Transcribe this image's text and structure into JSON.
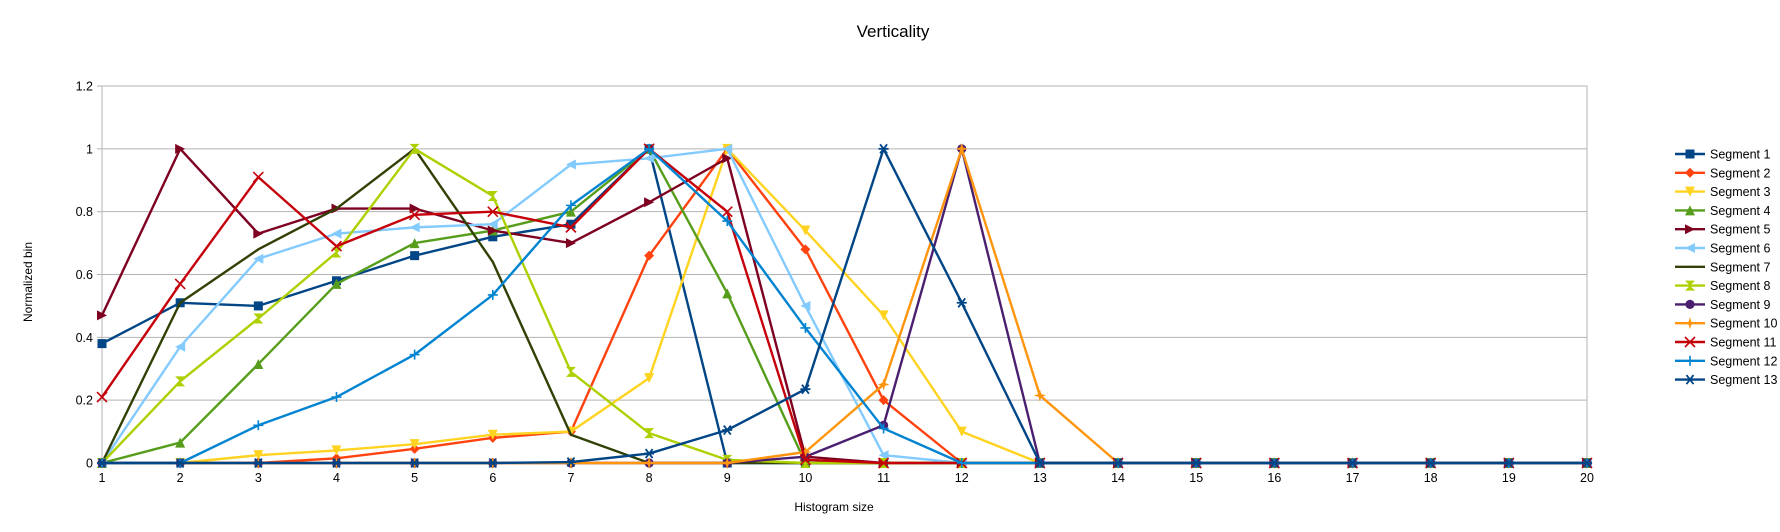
{
  "chart_data": {
    "type": "line",
    "title": "Verticality",
    "xlabel": "Histogram size",
    "ylabel": "Normalized bin",
    "x": [
      1,
      2,
      3,
      4,
      5,
      6,
      7,
      8,
      9,
      10,
      11,
      12,
      13,
      14,
      15,
      16,
      17,
      18,
      19,
      20
    ],
    "xlim": [
      1,
      20
    ],
    "ylim": [
      0,
      1.2
    ],
    "y_ticks": [
      "0",
      "0.2",
      "0.4",
      "0.6",
      "0.8",
      "1",
      "1.2"
    ],
    "grid": "horizontal",
    "legend_position": "right",
    "series": [
      {
        "name": "Segment 1",
        "color": "#004586",
        "marker": "square",
        "values": [
          0.38,
          0.51,
          0.5,
          0.58,
          0.66,
          0.72,
          0.76,
          1.0,
          0,
          0,
          0,
          0,
          0,
          0,
          0,
          0,
          0,
          0,
          0,
          0
        ]
      },
      {
        "name": "Segment 2",
        "color": "#ff420e",
        "marker": "diamond",
        "values": [
          0,
          0,
          0,
          0.015,
          0.045,
          0.08,
          0.1,
          0.66,
          1.0,
          0.68,
          0.2,
          0,
          0,
          0,
          0,
          0,
          0,
          0,
          0,
          0
        ]
      },
      {
        "name": "Segment 3",
        "color": "#ffd320",
        "marker": "triangle-down",
        "values": [
          0,
          0,
          0.025,
          0.04,
          0.06,
          0.09,
          0.1,
          0.27,
          1.0,
          0.74,
          0.47,
          0.1,
          0,
          0,
          0,
          0,
          0,
          0,
          0,
          0
        ]
      },
      {
        "name": "Segment 4",
        "color": "#579d1c",
        "marker": "triangle-up",
        "values": [
          0,
          0.065,
          0.315,
          0.57,
          0.7,
          0.74,
          0.8,
          1.0,
          0.54,
          0,
          0,
          0,
          0,
          0,
          0,
          0,
          0,
          0,
          0,
          0
        ]
      },
      {
        "name": "Segment 5",
        "color": "#7e0021",
        "marker": "triangle-right",
        "values": [
          0.47,
          1.0,
          0.73,
          0.81,
          0.81,
          0.74,
          0.7,
          0.83,
          0.97,
          0.02,
          0,
          0,
          0,
          0,
          0,
          0,
          0,
          0,
          0,
          0
        ]
      },
      {
        "name": "Segment 6",
        "color": "#83caff",
        "marker": "triangle-left",
        "values": [
          0,
          0.37,
          0.65,
          0.73,
          0.75,
          0.76,
          0.95,
          0.97,
          1.0,
          0.5,
          0.025,
          0,
          0,
          0,
          0,
          0,
          0,
          0,
          0,
          0
        ]
      },
      {
        "name": "Segment 7",
        "color": "#314004",
        "marker": "bowtie",
        "values": [
          0,
          0.51,
          0.68,
          0.81,
          1.0,
          0.64,
          0.09,
          0,
          0,
          0,
          0,
          0,
          0,
          0,
          0,
          0,
          0,
          0,
          0,
          0
        ]
      },
      {
        "name": "Segment 8",
        "color": "#aecf00",
        "marker": "hourglass",
        "values": [
          0,
          0.26,
          0.46,
          0.67,
          1.0,
          0.85,
          0.29,
          0.095,
          0.01,
          0,
          0,
          0,
          0,
          0,
          0,
          0,
          0,
          0,
          0,
          0
        ]
      },
      {
        "name": "Segment 9",
        "color": "#4b1f6f",
        "marker": "circle",
        "values": [
          0,
          0,
          0,
          0,
          0,
          0,
          0,
          0,
          0,
          0.02,
          0.12,
          1.0,
          0,
          0,
          0,
          0,
          0,
          0,
          0,
          0
        ]
      },
      {
        "name": "Segment 10",
        "color": "#ff950e",
        "marker": "star",
        "values": [
          0,
          0,
          0,
          0,
          0,
          0,
          0,
          0,
          0,
          0.035,
          0.25,
          1.0,
          0.215,
          0,
          0,
          0,
          0,
          0,
          0,
          0
        ]
      },
      {
        "name": "Segment 11",
        "color": "#c5000b",
        "marker": "x",
        "values": [
          0.21,
          0.57,
          0.91,
          0.69,
          0.79,
          0.8,
          0.75,
          1.0,
          0.8,
          0.01,
          0,
          0,
          0,
          0,
          0,
          0,
          0,
          0,
          0,
          0
        ]
      },
      {
        "name": "Segment 12",
        "color": "#0084d1",
        "marker": "plus",
        "values": [
          0,
          0,
          0.12,
          0.21,
          0.345,
          0.535,
          0.82,
          1.0,
          0.77,
          0.43,
          0.11,
          0,
          0,
          0,
          0,
          0,
          0,
          0,
          0,
          0
        ]
      },
      {
        "name": "Segment 13",
        "color": "#004586",
        "marker": "asterisk",
        "values": [
          0,
          0,
          0,
          0,
          0,
          0,
          0.003,
          0.03,
          0.105,
          0.235,
          1.0,
          0.51,
          0,
          0,
          0,
          0,
          0,
          0,
          0,
          0
        ]
      }
    ]
  }
}
